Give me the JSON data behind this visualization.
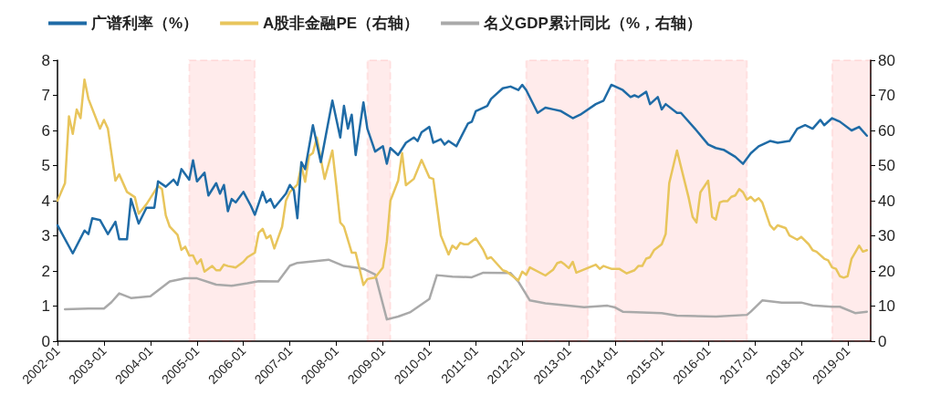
{
  "chart_data": {
    "type": "line",
    "xlim": [
      "2002-01",
      "2019-07"
    ],
    "xticks": [
      "2002-01",
      "2003-01",
      "2004-01",
      "2005-01",
      "2006-01",
      "2007-01",
      "2008-01",
      "2009-01",
      "2010-01",
      "2011-01",
      "2012-01",
      "2013-01",
      "2014-01",
      "2015-01",
      "2016-01",
      "2017-01",
      "2018-01",
      "2019-01"
    ],
    "ylim": [
      0,
      8
    ],
    "yticks": [
      0,
      1,
      2,
      3,
      4,
      5,
      6,
      7,
      8
    ],
    "y2lim": [
      0,
      80
    ],
    "y2ticks": [
      0,
      10,
      20,
      30,
      40,
      50,
      60,
      70,
      80
    ],
    "legend": "top",
    "grid": false,
    "marker": "none",
    "line_style": "solid",
    "series": [
      {
        "name": "广谱利率（%）",
        "color": "#1f6ba6",
        "x": [
          "2002-01",
          "2002-05",
          "2002-08",
          "2002-09",
          "2002-10",
          "2002-12",
          "2003-02",
          "2003-04",
          "2003-05",
          "2003-07",
          "2003-08",
          "2003-10",
          "2003-12",
          "2004-02",
          "2004-03",
          "2004-05",
          "2004-07",
          "2004-08",
          "2004-09",
          "2004-11",
          "2004-12",
          "2005-01",
          "2005-03",
          "2005-04",
          "2005-06",
          "2005-07",
          "2005-08",
          "2005-09",
          "2005-10",
          "2005-11",
          "2006-01",
          "2006-03",
          "2006-04",
          "2006-06",
          "2006-07",
          "2006-08",
          "2006-09",
          "2006-12",
          "2007-01",
          "2007-02",
          "2007-03",
          "2007-04",
          "2007-05",
          "2007-07",
          "2007-09",
          "2007-12",
          "2008-02",
          "2008-03",
          "2008-04",
          "2008-05",
          "2008-06",
          "2008-08",
          "2008-09",
          "2008-11",
          "2009-01",
          "2009-02",
          "2009-03",
          "2009-05",
          "2009-07",
          "2009-09",
          "2009-10",
          "2009-11",
          "2010-01",
          "2010-02",
          "2010-04",
          "2010-05",
          "2010-06",
          "2010-08",
          "2010-11",
          "2010-12",
          "2011-01",
          "2011-04",
          "2011-05",
          "2011-08",
          "2011-10",
          "2011-12",
          "2012-01",
          "2012-02",
          "2012-05",
          "2012-07",
          "2012-09",
          "2012-11",
          "2013-02",
          "2013-04",
          "2013-08",
          "2013-10",
          "2013-12",
          "2014-03",
          "2014-05",
          "2014-06",
          "2014-07",
          "2014-09",
          "2014-10",
          "2014-12",
          "2015-01",
          "2015-02",
          "2015-05",
          "2015-06",
          "2015-10",
          "2016-01",
          "2016-03",
          "2016-05",
          "2016-08",
          "2016-10",
          "2016-12",
          "2017-02",
          "2017-05",
          "2017-07",
          "2017-10",
          "2017-12",
          "2018-02",
          "2018-04",
          "2018-06",
          "2018-07",
          "2018-09",
          "2018-11",
          "2019-02",
          "2019-04",
          "2019-06"
        ],
        "values": [
          3.3,
          2.5,
          3.15,
          3.05,
          3.5,
          3.45,
          3.05,
          3.4,
          2.9,
          2.9,
          4.05,
          3.35,
          3.8,
          3.8,
          4.55,
          4.4,
          4.6,
          4.45,
          4.9,
          4.6,
          5.15,
          4.55,
          4.8,
          4.15,
          4.5,
          4.2,
          4.45,
          3.7,
          4.05,
          3.95,
          4.25,
          3.85,
          3.6,
          4.25,
          3.95,
          4.05,
          3.8,
          4.2,
          4.45,
          4.3,
          3.5,
          5.1,
          4.9,
          6.15,
          5.1,
          6.85,
          5.8,
          6.7,
          6.05,
          6.45,
          5.3,
          6.8,
          6.05,
          5.4,
          5.55,
          5.05,
          5.5,
          5.3,
          5.65,
          5.8,
          5.7,
          5.95,
          6.1,
          5.65,
          5.75,
          5.6,
          5.7,
          5.55,
          6.2,
          6.25,
          6.55,
          6.7,
          6.9,
          7.2,
          7.25,
          7.15,
          7.3,
          7.15,
          6.5,
          6.65,
          6.6,
          6.55,
          6.35,
          6.45,
          6.75,
          6.85,
          7.3,
          7.15,
          6.95,
          7.0,
          6.95,
          7.1,
          6.75,
          6.95,
          6.6,
          6.75,
          6.5,
          6.5,
          6.0,
          5.6,
          5.5,
          5.45,
          5.25,
          5.05,
          5.35,
          5.55,
          5.7,
          5.65,
          5.7,
          6.05,
          6.15,
          6.05,
          6.3,
          6.15,
          6.35,
          6.25,
          6.0,
          6.1,
          5.85
        ]
      },
      {
        "name": "A股非金融PE（右轴）",
        "color": "#e8c55c",
        "axis": "y2",
        "x": [
          "2002-01",
          "2002-03",
          "2002-04",
          "2002-05",
          "2002-06",
          "2002-07",
          "2002-08",
          "2002-09",
          "2002-12",
          "2003-01",
          "2003-02",
          "2003-04",
          "2003-05",
          "2003-07",
          "2003-09",
          "2003-10",
          "2003-12",
          "2004-03",
          "2004-04",
          "2004-05",
          "2004-06",
          "2004-08",
          "2004-09",
          "2004-10",
          "2004-11",
          "2004-12",
          "2005-01",
          "2005-02",
          "2005-03",
          "2005-05",
          "2005-06",
          "2005-07",
          "2005-08",
          "2005-09",
          "2005-11",
          "2006-01",
          "2006-02",
          "2006-04",
          "2006-05",
          "2006-06",
          "2006-07",
          "2006-08",
          "2006-09",
          "2006-11",
          "2006-12",
          "2007-01",
          "2007-03",
          "2007-04",
          "2007-05",
          "2007-06",
          "2007-07",
          "2007-08",
          "2007-10",
          "2007-12",
          "2008-01",
          "2008-02",
          "2008-03",
          "2008-05",
          "2008-06",
          "2008-08",
          "2008-09",
          "2008-11",
          "2009-01",
          "2009-02",
          "2009-03",
          "2009-05",
          "2009-06",
          "2009-07",
          "2009-09",
          "2009-11",
          "2010-01",
          "2010-02",
          "2010-04",
          "2010-06",
          "2010-07",
          "2010-08",
          "2010-09",
          "2010-10",
          "2010-11",
          "2011-01",
          "2011-03",
          "2011-04",
          "2011-05",
          "2011-08",
          "2011-09",
          "2011-12",
          "2012-01",
          "2012-02",
          "2012-03",
          "2012-07",
          "2012-09",
          "2012-10",
          "2012-11",
          "2012-12",
          "2013-01",
          "2013-02",
          "2013-03",
          "2013-08",
          "2013-09",
          "2013-10",
          "2013-12",
          "2014-02",
          "2014-04",
          "2014-06",
          "2014-07",
          "2014-08",
          "2014-09",
          "2014-10",
          "2014-11",
          "2015-01",
          "2015-02",
          "2015-03",
          "2015-05",
          "2015-06",
          "2015-08",
          "2015-09",
          "2015-10",
          "2015-11",
          "2016-01",
          "2016-02",
          "2016-03",
          "2016-04",
          "2016-05",
          "2016-06",
          "2016-07",
          "2016-08",
          "2016-09",
          "2016-10",
          "2016-11",
          "2016-12",
          "2017-01",
          "2017-02",
          "2017-03",
          "2017-05",
          "2017-06",
          "2017-07",
          "2017-08",
          "2017-09",
          "2017-10",
          "2017-12",
          "2018-01",
          "2018-03",
          "2018-04",
          "2018-05",
          "2018-07",
          "2018-08",
          "2018-09",
          "2018-10",
          "2018-11",
          "2018-12",
          "2019-01",
          "2019-02",
          "2019-03",
          "2019-04",
          "2019-05",
          "2019-06"
        ],
        "values": [
          40,
          45,
          64,
          59,
          66,
          63.5,
          74.5,
          69,
          60.5,
          63,
          60.5,
          45.7,
          47.5,
          42.5,
          41,
          36.3,
          39,
          44.2,
          43.3,
          35.8,
          32.6,
          30.3,
          26,
          26.9,
          24.4,
          24.4,
          22,
          23.3,
          19.8,
          21.4,
          20.2,
          20.2,
          21.8,
          21.4,
          21,
          22.6,
          23.9,
          25.2,
          30.9,
          32,
          29.3,
          30.1,
          26.4,
          32.6,
          40,
          42.5,
          44.6,
          49.9,
          45.4,
          52.8,
          53.6,
          58,
          46.2,
          54.3,
          44.4,
          33.8,
          32.6,
          25.2,
          25.2,
          16,
          17.7,
          18.1,
          21,
          28.4,
          40,
          45.7,
          53.6,
          44.4,
          46.2,
          51.6,
          46.6,
          46.2,
          30.1,
          24.7,
          27.2,
          26.3,
          28,
          27.6,
          27.6,
          29.3,
          26,
          23.5,
          23.9,
          20.2,
          19.8,
          17.3,
          19.8,
          18.9,
          21,
          18.7,
          20.4,
          22.2,
          22.6,
          21.8,
          20.8,
          22.6,
          19.5,
          21.8,
          20.6,
          21.4,
          20.6,
          20.6,
          19.3,
          20.2,
          21.4,
          21.4,
          23.5,
          23.9,
          25.9,
          27.6,
          30.5,
          45,
          54.3,
          49.7,
          40.8,
          35.4,
          33.8,
          42.4,
          45.7,
          35.4,
          34.6,
          39.5,
          39.9,
          39.9,
          41.1,
          41.5,
          43.3,
          42.4,
          40.3,
          41.1,
          39.9,
          40.7,
          39.5,
          33,
          31.8,
          33,
          32.6,
          32.2,
          30.1,
          28.9,
          29.7,
          27.6,
          25.9,
          25.5,
          23.5,
          23,
          21,
          20.6,
          18.5,
          18.1,
          18.5,
          23.5,
          25.2,
          27.2,
          25.5,
          25.9
        ]
      },
      {
        "name": "名义GDP累计同比（%，右轴）",
        "color": "#a9a9a9",
        "axis": "y2",
        "x": [
          "2002-03",
          "2002-09",
          "2003-01",
          "2003-03",
          "2003-05",
          "2003-08",
          "2004-01",
          "2004-06",
          "2004-10",
          "2005-01",
          "2005-06",
          "2005-10",
          "2006-02",
          "2006-05",
          "2006-10",
          "2007-01",
          "2007-03",
          "2007-11",
          "2008-03",
          "2008-06",
          "2008-08",
          "2008-11",
          "2009-02",
          "2009-05",
          "2009-08",
          "2010-01",
          "2010-03",
          "2010-07",
          "2010-12",
          "2011-03",
          "2011-10",
          "2011-12",
          "2012-03",
          "2012-07",
          "2013-05",
          "2013-11",
          "2014-01",
          "2014-03",
          "2015-01",
          "2015-05",
          "2016-03",
          "2016-11",
          "2016-12",
          "2017-03",
          "2017-08",
          "2018-01",
          "2018-04",
          "2018-09",
          "2018-11",
          "2019-03",
          "2019-06"
        ],
        "values": [
          9.1,
          9.3,
          9.3,
          11.1,
          13.6,
          12.3,
          12.8,
          17,
          17.9,
          17.9,
          16.1,
          15.8,
          16.5,
          17.1,
          17,
          21.5,
          22.3,
          23.2,
          21.4,
          21,
          20.6,
          19,
          6.2,
          7,
          8.2,
          12,
          18.8,
          18.4,
          18.2,
          19.5,
          19.4,
          17,
          11.6,
          10.8,
          9.7,
          10.1,
          9.6,
          8.4,
          8,
          7.3,
          7,
          7.5,
          8.4,
          11.6,
          11,
          11,
          10.2,
          9.8,
          9.8,
          8,
          8.4
        ]
      }
    ],
    "bands": [
      {
        "axis": "x",
        "from": "2004-11",
        "to": "2006-04",
        "color": "#ff0000"
      },
      {
        "axis": "x",
        "from": "2008-09",
        "to": "2009-03",
        "color": "#ff0000"
      },
      {
        "axis": "x",
        "from": "2012-02",
        "to": "2013-06",
        "color": "#ff0000"
      },
      {
        "axis": "x",
        "from": "2014-01",
        "to": "2016-11",
        "color": "#ff0000"
      },
      {
        "axis": "x",
        "from": "2018-09",
        "to": "2019-07",
        "color": "#ff0000"
      }
    ]
  }
}
